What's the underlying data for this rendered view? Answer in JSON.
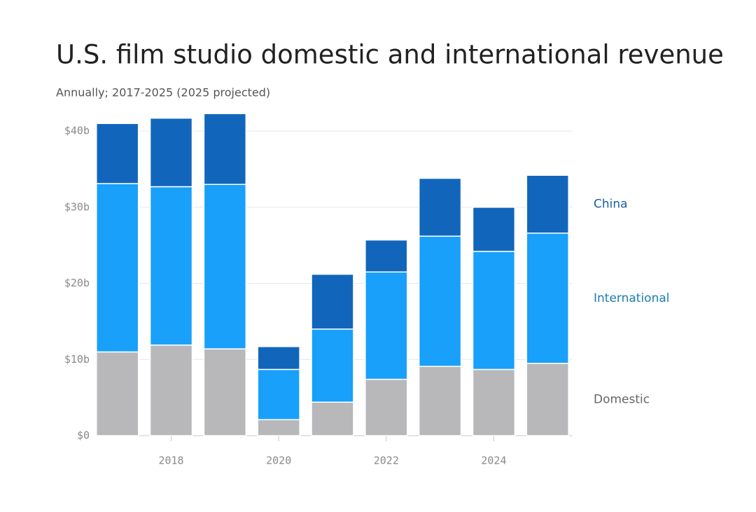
{
  "chart_data": {
    "type": "stacked_bar",
    "title": "U.S. film studio domestic and international revenue",
    "subtitle": "Annually; 2017-2025 (2025 projected)",
    "x": [
      2017,
      2018,
      2019,
      2020,
      2021,
      2022,
      2023,
      2024,
      2025
    ],
    "series": [
      {
        "name": "Domestic",
        "color": "#b8b8ba",
        "label_color": "#666666",
        "values": [
          11.0,
          11.9,
          11.4,
          2.1,
          4.4,
          7.4,
          9.1,
          8.7,
          9.5
        ]
      },
      {
        "name": "International",
        "color": "#18a0fb",
        "label_color": "#1a7db3",
        "values": [
          22.1,
          20.8,
          21.6,
          6.6,
          9.6,
          14.1,
          17.1,
          15.5,
          17.1
        ]
      },
      {
        "name": "China",
        "color": "#1166bb",
        "label_color": "#1b5f9e",
        "values": [
          7.9,
          9.0,
          9.3,
          3.0,
          7.2,
          4.2,
          7.6,
          5.8,
          7.6
        ]
      }
    ],
    "xlim": [
      2016.6,
      2025.4
    ],
    "xticks": [
      2018,
      2020,
      2022,
      2024
    ],
    "ylim": [
      0,
      42.5
    ],
    "yticks": [
      {
        "value": 0,
        "label": "$0"
      },
      {
        "value": 10,
        "label": "$10b"
      },
      {
        "value": 20,
        "label": "$20b"
      },
      {
        "value": 30,
        "label": "$30b"
      },
      {
        "value": 40,
        "label": "$40b"
      }
    ],
    "grid": true
  }
}
